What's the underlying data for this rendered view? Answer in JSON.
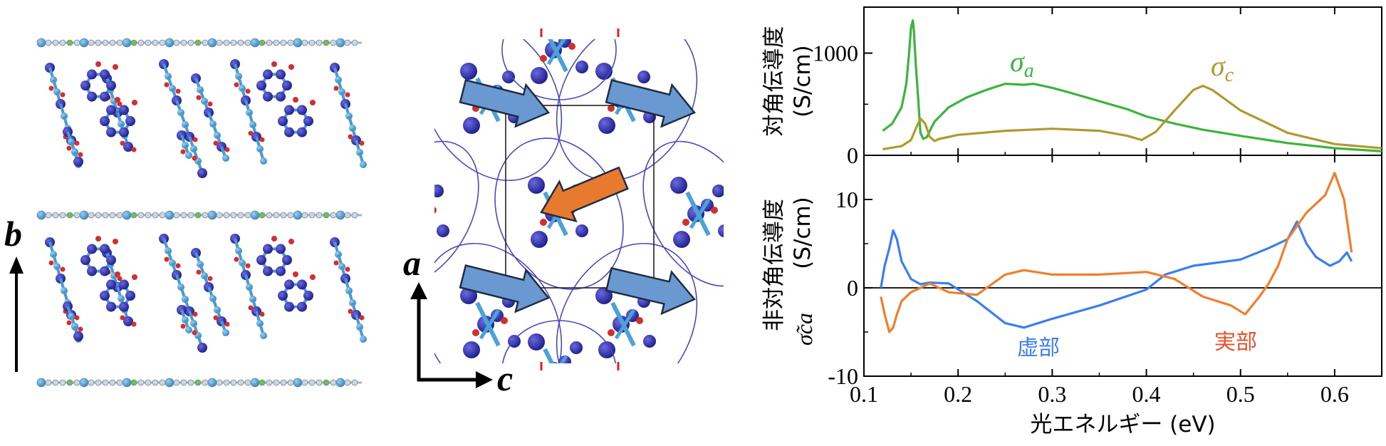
{
  "structure_panel": {
    "axis_label": "b"
  },
  "packing_panel": {
    "axis_a": "a",
    "axis_c": "c"
  },
  "colors": {
    "sigma_a": "#3cb43c",
    "sigma_c": "#b09a30",
    "imag": "#3a7ff0",
    "real": "#f07f2d",
    "arrow_blue": "#6a98d0",
    "arrow_orange": "#e87a30",
    "atom_dark": "#2e2ea8",
    "atom_light": "#4aa2d6",
    "atom_red": "#d03030"
  },
  "chart_data": [
    {
      "type": "line",
      "ylabel": "対角伝導度",
      "yunit": "(S/cm)",
      "ylim": [
        0,
        1450
      ],
      "xlim": [
        0.1,
        0.65
      ],
      "yticks": [
        "0",
        "1000"
      ],
      "ytick_values": [
        0,
        1000
      ],
      "series": [
        {
          "name": "σa",
          "base": "σ",
          "sub": "a",
          "color": "#3cb43c",
          "x": [
            0.12,
            0.13,
            0.14,
            0.145,
            0.148,
            0.15,
            0.152,
            0.153,
            0.155,
            0.158,
            0.16,
            0.163,
            0.167,
            0.17,
            0.175,
            0.19,
            0.21,
            0.23,
            0.25,
            0.27,
            0.28,
            0.3,
            0.32,
            0.35,
            0.38,
            0.4,
            0.43,
            0.46,
            0.5,
            0.55,
            0.6,
            0.65
          ],
          "y": [
            240,
            310,
            470,
            700,
            1000,
            1250,
            1320,
            1220,
            900,
            500,
            220,
            160,
            180,
            240,
            330,
            470,
            570,
            640,
            700,
            690,
            700,
            660,
            610,
            530,
            450,
            380,
            310,
            250,
            190,
            120,
            70,
            40
          ]
        },
        {
          "name": "σc",
          "base": "σ",
          "sub": "c",
          "color": "#b09a30",
          "x": [
            0.12,
            0.14,
            0.15,
            0.155,
            0.16,
            0.165,
            0.17,
            0.175,
            0.18,
            0.2,
            0.25,
            0.3,
            0.35,
            0.38,
            0.395,
            0.41,
            0.43,
            0.45,
            0.46,
            0.47,
            0.5,
            0.55,
            0.6,
            0.65
          ],
          "y": [
            60,
            90,
            150,
            260,
            360,
            310,
            180,
            140,
            160,
            200,
            240,
            260,
            240,
            190,
            150,
            230,
            440,
            640,
            680,
            640,
            440,
            220,
            110,
            70
          ]
        }
      ]
    },
    {
      "type": "line",
      "ylabel": "非対角伝導度",
      "yunit": "(S/cm)",
      "ysymbol": "σ̃ca",
      "ylim": [
        -10,
        15
      ],
      "xlim": [
        0.1,
        0.65
      ],
      "xlabel": "光エネルギー (eV)",
      "xticks": [
        "0.1",
        "0.2",
        "0.3",
        "0.4",
        "0.5",
        "0.6"
      ],
      "xtick_values": [
        0.1,
        0.2,
        0.3,
        0.4,
        0.5,
        0.6
      ],
      "yticks": [
        "-10",
        "0",
        "10"
      ],
      "ytick_values": [
        -10,
        0,
        10
      ],
      "series": [
        {
          "name": "虚部",
          "color": "#3a7ff0",
          "x": [
            0.118,
            0.122,
            0.127,
            0.131,
            0.135,
            0.14,
            0.15,
            0.16,
            0.17,
            0.19,
            0.22,
            0.25,
            0.27,
            0.3,
            0.35,
            0.4,
            0.42,
            0.45,
            0.5,
            0.53,
            0.55,
            0.56,
            0.57,
            0.58,
            0.595,
            0.605,
            0.613,
            0.618
          ],
          "y": [
            0,
            2.5,
            4.5,
            6.5,
            5.5,
            3.0,
            1.0,
            0.4,
            0.6,
            0.5,
            -1.5,
            -4.0,
            -4.5,
            -3.5,
            -2.0,
            -0.2,
            1.5,
            2.5,
            3.2,
            4.5,
            5.5,
            7.5,
            5.0,
            3.5,
            2.5,
            3.0,
            4.0,
            3.0
          ]
        },
        {
          "name": "実部",
          "color": "#f07f2d",
          "x": [
            0.118,
            0.122,
            0.127,
            0.131,
            0.135,
            0.14,
            0.15,
            0.16,
            0.17,
            0.19,
            0.22,
            0.25,
            0.27,
            0.3,
            0.35,
            0.4,
            0.43,
            0.46,
            0.49,
            0.505,
            0.52,
            0.53,
            0.54,
            0.55,
            0.57,
            0.59,
            0.6,
            0.61,
            0.618
          ],
          "y": [
            -1.0,
            -3.0,
            -5.0,
            -4.5,
            -3.0,
            -1.5,
            -0.5,
            0,
            0.5,
            -0.5,
            -0.8,
            1.5,
            2.0,
            1.5,
            1.5,
            1.8,
            1.0,
            -1.0,
            -2.0,
            -3.0,
            -1.0,
            0.5,
            2.5,
            5.5,
            8.5,
            10.5,
            13.0,
            10.0,
            4.0
          ]
        }
      ]
    }
  ]
}
